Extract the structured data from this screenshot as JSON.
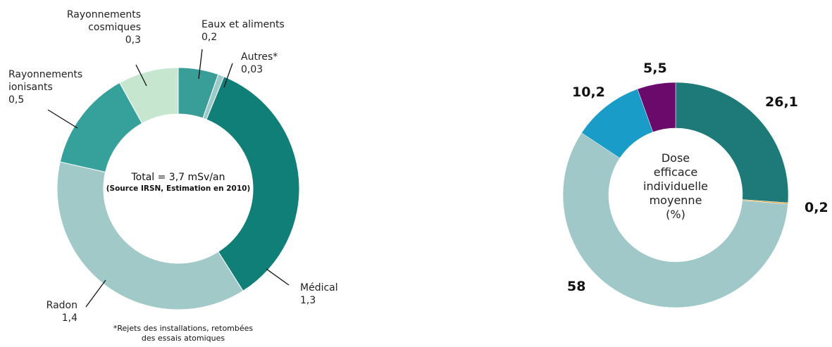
{
  "chart_data": [
    {
      "type": "donut",
      "categories": [
        "Eaux et aliments",
        "Autres*",
        "Médical",
        "Radon",
        "Rayonnements ionisants",
        "Rayonnements cosmiques"
      ],
      "values": [
        0.2,
        0.03,
        1.3,
        1.4,
        0.5,
        0.3
      ],
      "value_labels": [
        "0,2",
        "0,03",
        "1,3",
        "1,4",
        "0,5",
        "0,3"
      ],
      "colors": [
        "#3a9e98",
        "#9ccac8",
        "#0f7f78",
        "#a0c9c7",
        "#36a09a",
        "#c7e6d0"
      ],
      "center_title": "Total = 3,7 mSv/an",
      "center_subtitle": "(Source IRSN, Estimation en 2010)",
      "footnote": "*Rejets des installations, retombées des essais atomiques"
    },
    {
      "type": "donut",
      "values": [
        26.1,
        0.2,
        58,
        10.2,
        5.5
      ],
      "value_labels": [
        "26,1",
        "0,2",
        "58",
        "10,2",
        "5,5"
      ],
      "colors": [
        "#1d7a78",
        "#e0a030",
        "#a0c8c8",
        "#1a9cc8",
        "#6a0a6a"
      ],
      "center_title": "Dose efficace individuelle moyenne (%)"
    }
  ]
}
